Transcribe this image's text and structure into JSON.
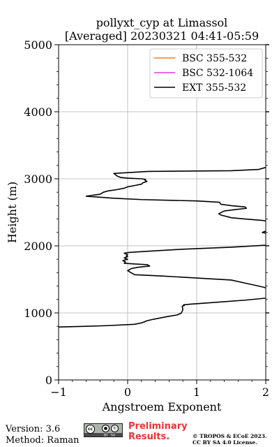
{
  "chart_data": {
    "type": "line",
    "title": [
      "pollyxt_cyp at Limassol",
      "[Averaged] 20230321 04:41-05:59"
    ],
    "xlabel": "Angstroem Exponent",
    "ylabel": "Height (m)",
    "xlim": [
      -1,
      2
    ],
    "ylim": [
      0,
      5000
    ],
    "x_ticks": [
      "−1",
      "0",
      "1",
      "2"
    ],
    "y_ticks": [
      "0",
      "1000",
      "2000",
      "3000",
      "4000",
      "5000"
    ],
    "grid": true,
    "legend_position": "top-right",
    "series": [
      {
        "name": "BSC 355-532",
        "color": "#ff7f0e",
        "points": []
      },
      {
        "name": "BSC 532-1064",
        "color": "#e536e5",
        "points": []
      },
      {
        "name": "EXT 355-532",
        "color": "#000000",
        "points": [
          [
            -1.0,
            790
          ],
          [
            -0.6,
            800
          ],
          [
            -0.3,
            810
          ],
          [
            0.1,
            830
          ],
          [
            0.2,
            850
          ],
          [
            0.25,
            870
          ],
          [
            0.27,
            880
          ],
          [
            0.35,
            900
          ],
          [
            0.45,
            920
          ],
          [
            0.5,
            930
          ],
          [
            0.6,
            950
          ],
          [
            0.72,
            970
          ],
          [
            0.78,
            1000
          ],
          [
            0.8,
            1050
          ],
          [
            0.79,
            1100
          ],
          [
            0.82,
            1110
          ],
          [
            0.81,
            1120
          ],
          [
            0.9,
            1130
          ],
          [
            1.3,
            1160
          ],
          [
            1.7,
            1190
          ],
          [
            2.0,
            1220
          ],
          [
            2.05,
            1240
          ],
          [
            2.05,
            1360
          ],
          [
            1.98,
            1380
          ],
          [
            1.9,
            1400
          ],
          [
            1.72,
            1440
          ],
          [
            1.5,
            1490
          ],
          [
            1.0,
            1520
          ],
          [
            0.5,
            1550
          ],
          [
            0.1,
            1570
          ],
          [
            0.05,
            1600
          ],
          [
            0.0,
            1630
          ],
          [
            0.05,
            1660
          ],
          [
            0.15,
            1680
          ],
          [
            0.32,
            1700
          ],
          [
            0.28,
            1720
          ],
          [
            0.1,
            1730
          ],
          [
            -0.05,
            1740
          ],
          [
            -0.03,
            1760
          ],
          [
            -0.07,
            1780
          ],
          [
            0.0,
            1800
          ],
          [
            -0.05,
            1820
          ],
          [
            0.0,
            1840
          ],
          [
            -0.02,
            1850
          ],
          [
            0.0,
            1870
          ],
          [
            -0.05,
            1890
          ],
          [
            0.0,
            1900
          ],
          [
            0.3,
            1920
          ],
          [
            0.8,
            1950
          ],
          [
            1.5,
            1980
          ],
          [
            2.0,
            2010
          ],
          [
            2.05,
            2020
          ],
          [
            2.05,
            2180
          ],
          [
            1.95,
            2200
          ],
          [
            2.0,
            2220
          ],
          [
            2.05,
            2240
          ],
          [
            2.05,
            2360
          ],
          [
            1.95,
            2380
          ],
          [
            1.7,
            2400
          ],
          [
            1.5,
            2420
          ],
          [
            1.35,
            2460
          ],
          [
            1.32,
            2480
          ],
          [
            1.4,
            2520
          ],
          [
            1.55,
            2540
          ],
          [
            1.72,
            2560
          ],
          [
            1.7,
            2580
          ],
          [
            1.5,
            2600
          ],
          [
            1.35,
            2620
          ],
          [
            1.33,
            2650
          ],
          [
            1.0,
            2670
          ],
          [
            0.2,
            2690
          ],
          [
            -0.2,
            2710
          ],
          [
            -0.6,
            2740
          ],
          [
            -0.4,
            2770
          ],
          [
            -0.35,
            2800
          ],
          [
            -0.28,
            2820
          ],
          [
            -0.15,
            2840
          ],
          [
            -0.05,
            2860
          ],
          [
            0.0,
            2880
          ],
          [
            0.05,
            2890
          ],
          [
            0.1,
            2900
          ],
          [
            0.2,
            2920
          ],
          [
            0.22,
            2940
          ],
          [
            0.25,
            2950
          ],
          [
            0.28,
            2960
          ],
          [
            0.25,
            2980
          ],
          [
            0.26,
            2990
          ],
          [
            0.2,
            3000
          ],
          [
            0.0,
            3010
          ],
          [
            -0.1,
            3020
          ],
          [
            -0.15,
            3040
          ],
          [
            -0.2,
            3080
          ],
          [
            0.3,
            3110
          ],
          [
            1.5,
            3120
          ],
          [
            1.9,
            3140
          ],
          [
            2.0,
            3170
          ],
          [
            2.05,
            3180
          ]
        ]
      }
    ]
  },
  "footer": {
    "version": "Version: 3.6",
    "method": "Method: Raman",
    "preliminary_line1": "Preliminary",
    "preliminary_line2": "Results.",
    "copyright_line1": "© TROPOS & ECoE 2023.",
    "copyright_line2": "CC BY SA 4.0 License.",
    "license_badge_icons": [
      "cc-icon",
      "by-icon",
      "sa-icon"
    ],
    "license_badge_text": [
      "BY",
      "SA"
    ]
  }
}
